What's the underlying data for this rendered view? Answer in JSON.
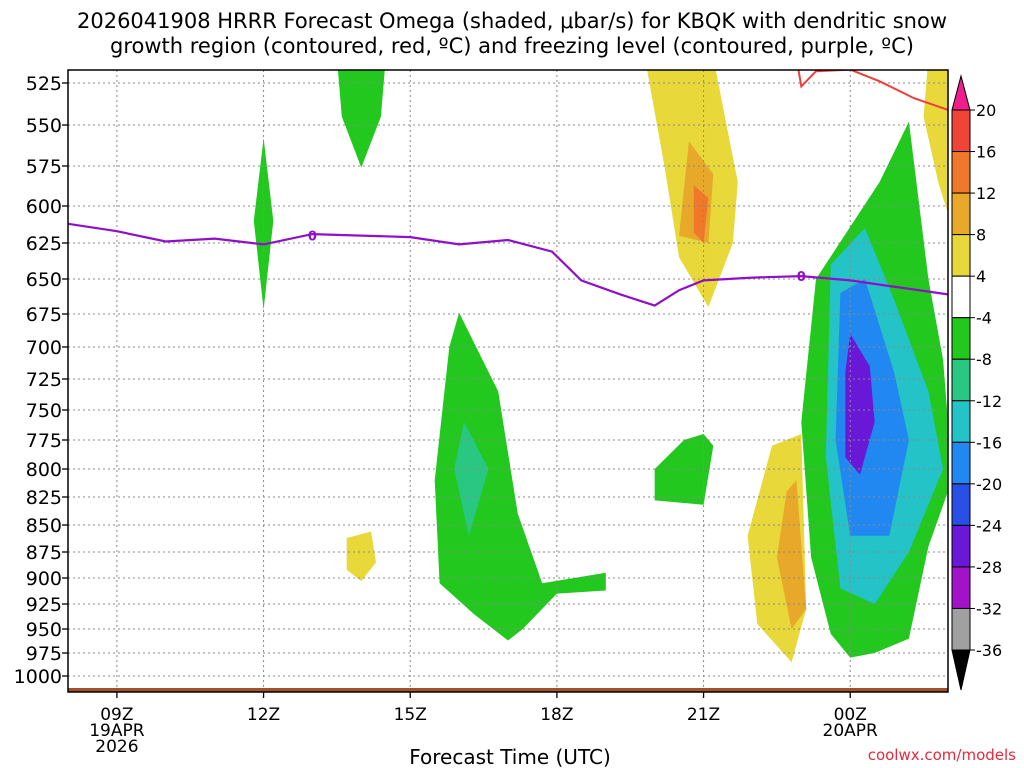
{
  "chart_data": {
    "type": "heatmap",
    "title_line1": "2026041908 HRRR Forecast Omega (shaded, μbar/s) for KBQK with dendritic snow",
    "title_line2": "growth region (contoured, red, ºC) and freezing level (contoured, purple, ºC)",
    "xlabel": "Forecast Time (UTC)",
    "credit": "coolwx.com/models",
    "x_ticks": [
      {
        "label": "09Z",
        "sub": "19APR",
        "sub2": "2026",
        "hour": 9
      },
      {
        "label": "12Z",
        "sub": "",
        "sub2": "",
        "hour": 12
      },
      {
        "label": "15Z",
        "sub": "",
        "sub2": "",
        "hour": 15
      },
      {
        "label": "18Z",
        "sub": "",
        "sub2": "",
        "hour": 18
      },
      {
        "label": "21Z",
        "sub": "",
        "sub2": "",
        "hour": 21
      },
      {
        "label": "00Z",
        "sub": "20APR",
        "sub2": "",
        "hour": 24
      }
    ],
    "x_range_hours": [
      8,
      26
    ],
    "y_range_mb": [
      510,
      1020
    ],
    "y_ticks": [
      525,
      550,
      575,
      600,
      625,
      650,
      675,
      700,
      725,
      750,
      775,
      800,
      825,
      850,
      875,
      900,
      925,
      950,
      975,
      1000
    ],
    "colorbar": {
      "labels": [
        "20",
        "16",
        "12",
        "8",
        "4",
        "-4",
        "-8",
        "-12",
        "-16",
        "-20",
        "-24",
        "-28",
        "-32",
        "-36"
      ],
      "colors": [
        "#ee1e8c",
        "#f04438",
        "#f0782a",
        "#e8a82a",
        "#e8d83a",
        "#ffffff",
        "#22c81e",
        "#28c882",
        "#23c3c8",
        "#2088f0",
        "#2850e6",
        "#6a18d8",
        "#a212c8",
        "#a0a0a0",
        "#000000"
      ]
    },
    "freezing_level_label": "0",
    "freezing_level_path": [
      {
        "h": 8.0,
        "p": 612
      },
      {
        "h": 9.0,
        "p": 617
      },
      {
        "h": 10.0,
        "p": 624
      },
      {
        "h": 11.0,
        "p": 622
      },
      {
        "h": 12.0,
        "p": 626
      },
      {
        "h": 13.0,
        "p": 619
      },
      {
        "h": 14.0,
        "p": 620
      },
      {
        "h": 15.0,
        "p": 621
      },
      {
        "h": 16.0,
        "p": 626
      },
      {
        "h": 17.0,
        "p": 623
      },
      {
        "h": 17.9,
        "p": 631
      },
      {
        "h": 18.5,
        "p": 651
      },
      {
        "h": 19.3,
        "p": 661
      },
      {
        "h": 20.0,
        "p": 669
      },
      {
        "h": 20.5,
        "p": 658
      },
      {
        "h": 21.0,
        "p": 651
      },
      {
        "h": 22.0,
        "p": 649
      },
      {
        "h": 23.0,
        "p": 648
      },
      {
        "h": 24.0,
        "p": 651
      },
      {
        "h": 25.0,
        "p": 656
      },
      {
        "h": 26.0,
        "p": 661
      }
    ],
    "dgz_path": [
      {
        "h": 22.9,
        "p": 510
      },
      {
        "h": 23.0,
        "p": 527
      },
      {
        "h": 23.3,
        "p": 518
      },
      {
        "h": 24.0,
        "p": 517
      },
      {
        "h": 24.6,
        "p": 524
      },
      {
        "h": 25.3,
        "p": 534
      },
      {
        "h": 26.0,
        "p": 541
      }
    ],
    "omega_regions": [
      {
        "name": "green-12z",
        "value": -6,
        "points": [
          [
            12,
            558
          ],
          [
            12.2,
            610
          ],
          [
            12,
            672
          ],
          [
            11.8,
            610
          ]
        ]
      },
      {
        "name": "green-14z-top",
        "value": -6,
        "points": [
          [
            13.5,
            510
          ],
          [
            14.5,
            510
          ],
          [
            14.4,
            545
          ],
          [
            14.0,
            576
          ],
          [
            13.6,
            545
          ]
        ]
      },
      {
        "name": "yellow-14z",
        "value": 6,
        "points": [
          [
            13.7,
            862
          ],
          [
            14.2,
            856
          ],
          [
            14.3,
            885
          ],
          [
            14.0,
            903
          ],
          [
            13.7,
            892
          ]
        ]
      },
      {
        "name": "green-16z",
        "value": -7,
        "points": [
          [
            16.0,
            674
          ],
          [
            16.8,
            735
          ],
          [
            17.2,
            840
          ],
          [
            17.7,
            905
          ],
          [
            19.0,
            895
          ],
          [
            19.0,
            912
          ],
          [
            18.0,
            915
          ],
          [
            17.3,
            950
          ],
          [
            17.0,
            962
          ],
          [
            16.3,
            935
          ],
          [
            15.6,
            905
          ],
          [
            15.5,
            810
          ],
          [
            15.8,
            700
          ]
        ]
      },
      {
        "name": "teal-16z",
        "value": -10,
        "points": [
          [
            16.1,
            760
          ],
          [
            16.6,
            800
          ],
          [
            16.2,
            860
          ],
          [
            15.9,
            800
          ]
        ]
      },
      {
        "name": "green-20z",
        "value": -6,
        "points": [
          [
            21.0,
            770
          ],
          [
            21.2,
            780
          ],
          [
            21.0,
            832
          ],
          [
            20.0,
            828
          ],
          [
            20.0,
            800
          ],
          [
            20.6,
            775
          ]
        ]
      },
      {
        "name": "yellow-21z",
        "value": 6,
        "points": [
          [
            19.8,
            510
          ],
          [
            21.2,
            510
          ],
          [
            21.7,
            585
          ],
          [
            21.6,
            625
          ],
          [
            21.1,
            670
          ],
          [
            20.5,
            635
          ],
          [
            20.2,
            575
          ]
        ]
      },
      {
        "name": "orange-21z",
        "value": 10,
        "points": [
          [
            20.7,
            560
          ],
          [
            21.2,
            580
          ],
          [
            21.1,
            625
          ],
          [
            20.5,
            620
          ]
        ]
      },
      {
        "name": "orange2-21z",
        "value": 13,
        "points": [
          [
            20.8,
            587
          ],
          [
            21.1,
            595
          ],
          [
            21.0,
            625
          ],
          [
            20.8,
            618
          ]
        ]
      },
      {
        "name": "yellow-23z",
        "value": 5,
        "points": [
          [
            22.4,
            780
          ],
          [
            23.0,
            770
          ],
          [
            23.1,
            930
          ],
          [
            22.8,
            985
          ],
          [
            22.1,
            945
          ],
          [
            21.9,
            860
          ]
        ]
      },
      {
        "name": "orange-23z",
        "value": 9,
        "points": [
          [
            22.7,
            820
          ],
          [
            22.9,
            810
          ],
          [
            23.1,
            930
          ],
          [
            22.8,
            950
          ],
          [
            22.5,
            880
          ]
        ]
      },
      {
        "name": "green-00z",
        "value": -6,
        "points": [
          [
            23.3,
            650
          ],
          [
            24.6,
            585
          ],
          [
            25.2,
            548
          ],
          [
            25.6,
            650
          ],
          [
            25.9,
            710
          ],
          [
            26.0,
            760
          ],
          [
            26.0,
            820
          ],
          [
            25.6,
            870
          ],
          [
            25.2,
            960
          ],
          [
            24.5,
            975
          ],
          [
            24.0,
            980
          ],
          [
            23.6,
            955
          ],
          [
            23.2,
            880
          ],
          [
            23.0,
            760
          ]
        ]
      },
      {
        "name": "teal-00z",
        "value": -14,
        "points": [
          [
            23.6,
            640
          ],
          [
            24.3,
            615
          ],
          [
            24.9,
            665
          ],
          [
            25.6,
            735
          ],
          [
            25.9,
            800
          ],
          [
            25.2,
            875
          ],
          [
            24.5,
            925
          ],
          [
            23.8,
            910
          ],
          [
            23.5,
            790
          ]
        ]
      },
      {
        "name": "blue-00z",
        "value": -18,
        "points": [
          [
            23.8,
            660
          ],
          [
            24.3,
            650
          ],
          [
            24.9,
            720
          ],
          [
            25.2,
            775
          ],
          [
            24.8,
            860
          ],
          [
            24.0,
            860
          ],
          [
            23.7,
            775
          ]
        ]
      },
      {
        "name": "purple-00z",
        "value": -26,
        "points": [
          [
            24.0,
            690
          ],
          [
            24.4,
            715
          ],
          [
            24.5,
            760
          ],
          [
            24.2,
            805
          ],
          [
            23.9,
            790
          ],
          [
            23.9,
            720
          ]
        ]
      },
      {
        "name": "yellow-00z-top",
        "value": 5,
        "points": [
          [
            25.6,
            510
          ],
          [
            26.0,
            510
          ],
          [
            26.0,
            605
          ],
          [
            25.8,
            585
          ],
          [
            25.5,
            545
          ]
        ]
      }
    ]
  }
}
